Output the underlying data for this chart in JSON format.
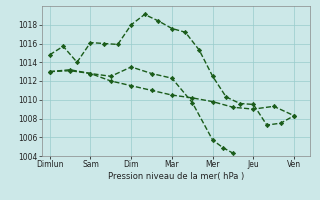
{
  "background_color": "#cce8e8",
  "grid_color": "#99cccc",
  "line_color": "#1a5c1a",
  "ylim": [
    1004,
    1020
  ],
  "yticks": [
    1004,
    1006,
    1008,
    1010,
    1012,
    1014,
    1016,
    1018
  ],
  "xlabel": "Pression niveau de la mer( hPa )",
  "x_tick_positions": [
    0,
    1,
    2,
    3,
    4,
    5,
    6
  ],
  "x_tick_labels": [
    "Dimlun",
    "Sam",
    "Dim",
    "Mar",
    "Mer",
    "Jeu",
    "Ven"
  ],
  "series1": {
    "x": [
      0,
      0.33,
      0.67,
      1.0,
      1.33,
      1.67,
      2.0,
      2.33,
      2.67,
      3.0,
      3.33,
      3.67,
      4.0,
      4.33,
      4.67,
      5.0,
      5.33,
      5.67,
      6.0
    ],
    "y": [
      1014.8,
      1015.7,
      1014.0,
      1016.1,
      1016.0,
      1015.9,
      1018.0,
      1019.1,
      1018.4,
      1017.6,
      1017.2,
      1015.3,
      1012.5,
      1010.3,
      1009.6,
      1009.5,
      1007.3,
      1007.5,
      1008.3
    ]
  },
  "series2": {
    "x": [
      0,
      0.5,
      1.0,
      1.5,
      2.0,
      2.5,
      3.0,
      3.5,
      4.0,
      4.25,
      4.5
    ],
    "y": [
      1013.0,
      1013.2,
      1012.8,
      1012.5,
      1013.5,
      1012.8,
      1012.3,
      1009.7,
      1005.7,
      1004.9,
      1004.3
    ]
  },
  "series3": {
    "x": [
      0,
      0.5,
      1.0,
      1.5,
      2.0,
      2.5,
      3.0,
      3.5,
      4.0,
      4.5,
      5.0,
      5.5,
      6.0
    ],
    "y": [
      1013.0,
      1013.1,
      1012.8,
      1012.0,
      1011.5,
      1011.0,
      1010.5,
      1010.2,
      1009.8,
      1009.2,
      1009.0,
      1009.3,
      1008.3
    ]
  }
}
